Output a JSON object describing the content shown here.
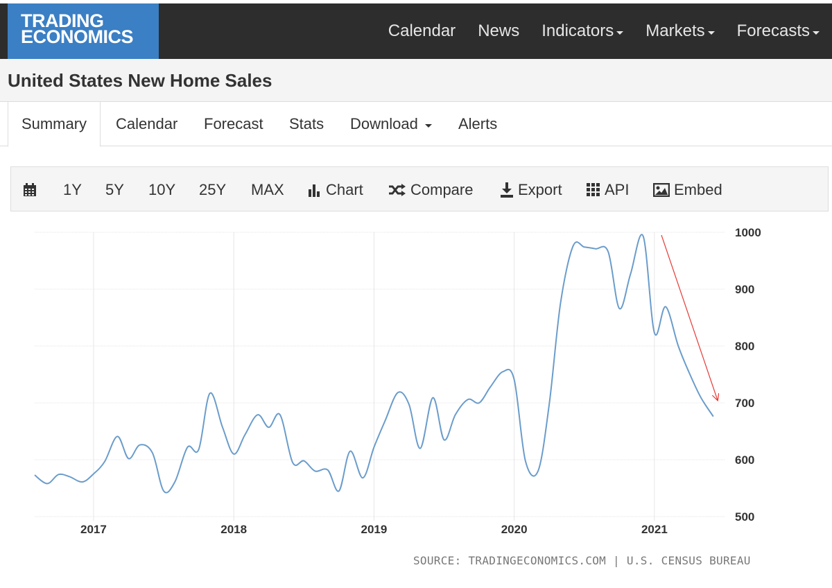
{
  "brand": {
    "line1": "TRADING",
    "line2": "ECONOMICS"
  },
  "nav": {
    "items": [
      {
        "label": "Calendar",
        "dropdown": false
      },
      {
        "label": "News",
        "dropdown": false
      },
      {
        "label": "Indicators",
        "dropdown": true
      },
      {
        "label": "Markets",
        "dropdown": true
      },
      {
        "label": "Forecasts",
        "dropdown": true
      }
    ]
  },
  "page": {
    "title": "United States New Home Sales"
  },
  "tabs": [
    {
      "label": "Summary",
      "active": true
    },
    {
      "label": "Calendar"
    },
    {
      "label": "Forecast"
    },
    {
      "label": "Stats"
    },
    {
      "label": "Download",
      "dropdown": true
    },
    {
      "label": "Alerts"
    }
  ],
  "toolbar": {
    "ranges": [
      "1Y",
      "5Y",
      "10Y",
      "25Y",
      "MAX"
    ],
    "chart": "Chart",
    "compare": "Compare",
    "export": "Export",
    "api": "API",
    "embed": "Embed"
  },
  "colors": {
    "line": "#6a9ccb",
    "accent": "#3b7fc4",
    "trend_arrow": "#e53935",
    "grid": "#e6e6e6"
  },
  "source": "SOURCE: TRADINGECONOMICS.COM | U.S. CENSUS BUREAU",
  "chart_data": {
    "type": "line",
    "title": "United States New Home Sales",
    "xlabel": "",
    "ylabel": "",
    "xlim": [
      2016.58,
      2021.5
    ],
    "ylim": [
      500,
      1000
    ],
    "y_ticks": [
      500,
      600,
      700,
      800,
      900,
      1000
    ],
    "x_ticks": [
      {
        "value": 2017,
        "label": "2017"
      },
      {
        "value": 2018,
        "label": "2018"
      },
      {
        "value": 2019,
        "label": "2019"
      },
      {
        "value": 2020,
        "label": "2020"
      },
      {
        "value": 2021,
        "label": "2021"
      }
    ],
    "series": [
      {
        "name": "New Home Sales",
        "x": [
          2016.58,
          2016.67,
          2016.75,
          2016.83,
          2016.92,
          2017.0,
          2017.08,
          2017.17,
          2017.25,
          2017.33,
          2017.42,
          2017.5,
          2017.58,
          2017.67,
          2017.75,
          2017.83,
          2017.92,
          2018.0,
          2018.08,
          2018.17,
          2018.25,
          2018.33,
          2018.42,
          2018.5,
          2018.58,
          2018.67,
          2018.75,
          2018.83,
          2018.92,
          2019.0,
          2019.08,
          2019.17,
          2019.25,
          2019.33,
          2019.42,
          2019.5,
          2019.58,
          2019.67,
          2019.75,
          2019.83,
          2019.92,
          2020.0,
          2020.08,
          2020.17,
          2020.25,
          2020.33,
          2020.42,
          2020.5,
          2020.58,
          2020.67,
          2020.75,
          2020.83,
          2020.92,
          2021.0,
          2021.08,
          2021.17,
          2021.25,
          2021.33,
          2021.42
        ],
        "values": [
          573,
          558,
          574,
          570,
          561,
          575,
          597,
          641,
          602,
          626,
          612,
          545,
          561,
          622,
          618,
          717,
          657,
          610,
          644,
          679,
          657,
          679,
          595,
          598,
          580,
          582,
          545,
          615,
          568,
          622,
          669,
          718,
          697,
          620,
          709,
          635,
          679,
          706,
          700,
          728,
          755,
          741,
          598,
          580,
          698,
          875,
          976,
          974,
          971,
          966,
          866,
          927,
          993,
          823,
          869,
          800,
          752,
          710,
          676
        ]
      }
    ],
    "annotations": [
      {
        "type": "arrow",
        "from": [
          2021.05,
          995
        ],
        "to": [
          2021.45,
          705
        ],
        "meaning": "downtrend"
      }
    ]
  }
}
